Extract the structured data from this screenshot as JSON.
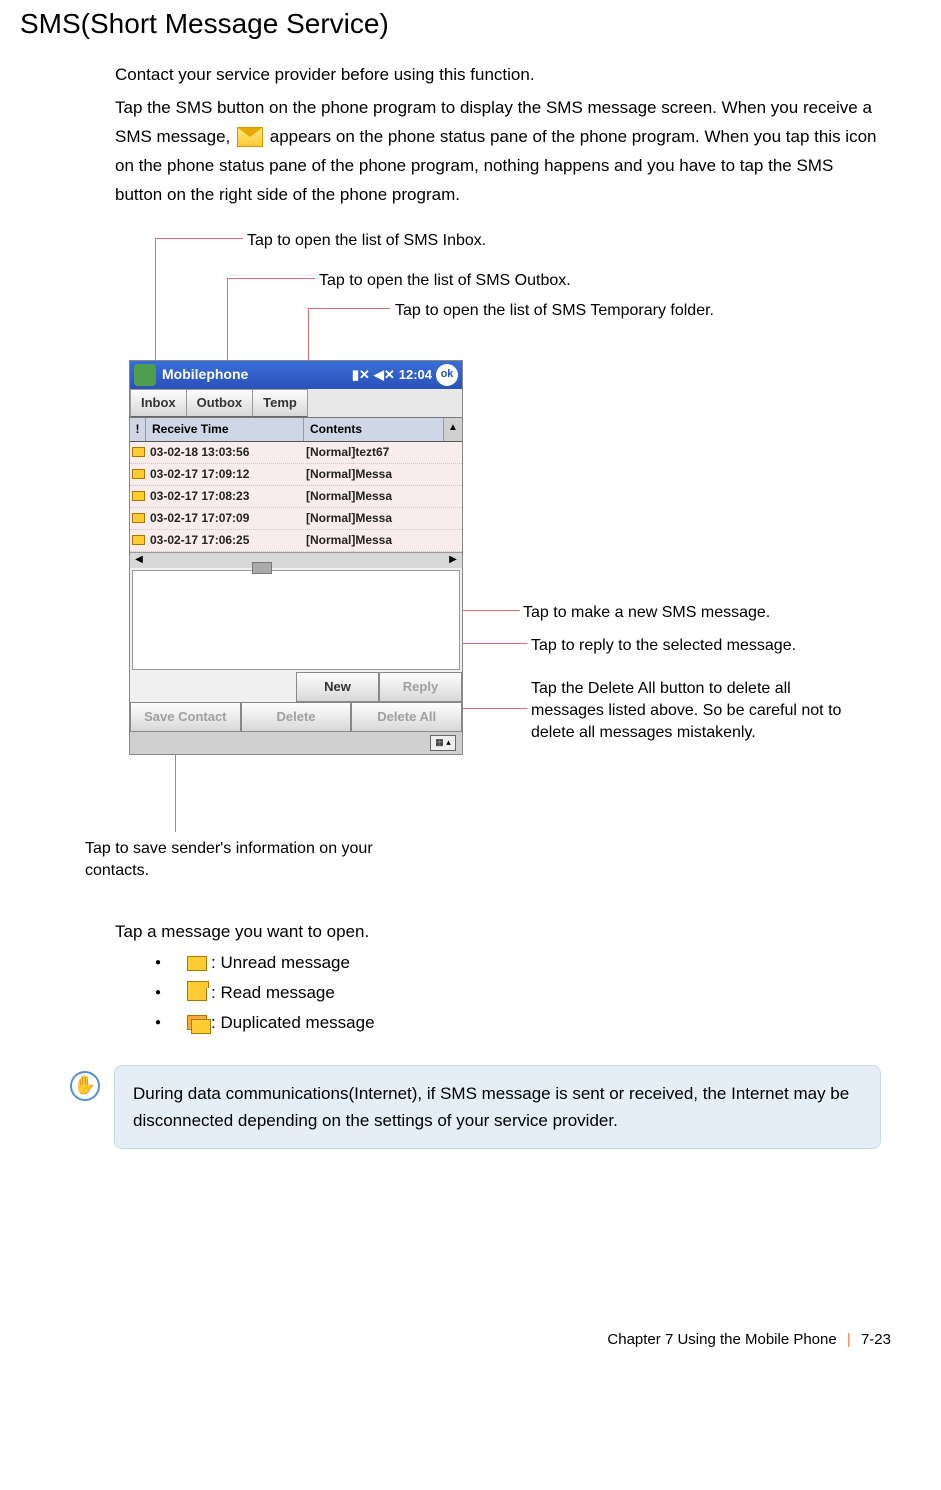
{
  "title": "SMS(Short Message Service)",
  "intro": {
    "line1": "Contact your service provider before using this function.",
    "line2a": "Tap the SMS button on the phone program to display the SMS message screen. When you receive a SMS message, ",
    "line2b": "appears on the phone status pane of the phone program. When you tap this icon on the phone status pane of the phone program, nothing happens and you have to tap the SMS button on the right side of the phone program."
  },
  "callouts": {
    "inbox": "Tap to open the list of SMS Inbox.",
    "outbox": "Tap to open the list of SMS Outbox.",
    "temp": "Tap to open the list of SMS Temporary folder.",
    "new": "Tap to make a new SMS message.",
    "reply": "Tap to reply to the selected message.",
    "deleteall": "Tap the Delete All button to delete all messages listed above. So be careful not to delete all messages mistakenly.",
    "savecontact": "Tap to save sender's information on your contacts."
  },
  "phone": {
    "appTitle": "Mobilephone",
    "time": "12:04",
    "okLabel": "ok",
    "signalGlyph": "▮✕",
    "volGlyph": "◀✕",
    "tabs": {
      "inbox": "Inbox",
      "outbox": "Outbox",
      "temp": "Temp"
    },
    "headers": {
      "bang": "!",
      "receiveTime": "Receive Time",
      "contents": "Contents",
      "scrollUp": "▲"
    },
    "rows": [
      {
        "time": "03-02-18 13:03:56",
        "content": "[Normal]tezt67"
      },
      {
        "time": "03-02-17 17:09:12",
        "content": "[Normal]Messa"
      },
      {
        "time": "03-02-17 17:08:23",
        "content": "[Normal]Messa"
      },
      {
        "time": "03-02-17 17:07:09",
        "content": "[Normal]Messa"
      },
      {
        "time": "03-02-17 17:06:25",
        "content": "[Normal]Messa"
      }
    ],
    "hscroll": {
      "left": "◀",
      "right": "▶"
    },
    "buttons": {
      "new": "New",
      "reply": "Reply",
      "saveContact": "Save Contact",
      "delete": "Delete",
      "deleteAll": "Delete All"
    },
    "sipGlyph": "▦ ▴"
  },
  "legend": {
    "intro": "Tap a message you want to open.",
    "unread": ": Unread message",
    "read": ": Read message",
    "dup": ": Duplicated message"
  },
  "note": "During data communications(Internet), if SMS message is sent or received, the Internet may be disconnected depending on the settings of your service provider.",
  "footer": {
    "chapter": "Chapter 7 Using the Mobile Phone",
    "page": "7-23"
  },
  "colors": {
    "calloutLine": "#d97070",
    "titlebarGradTop": "#3a6ed8",
    "titlebarGradBottom": "#2a52b8",
    "listBg": "#f8ecec",
    "noteBg": "#e3eef7",
    "noteBorder": "#c6dcee",
    "noteIcon": "#5a8fd6",
    "footerSep": "#f08030"
  }
}
